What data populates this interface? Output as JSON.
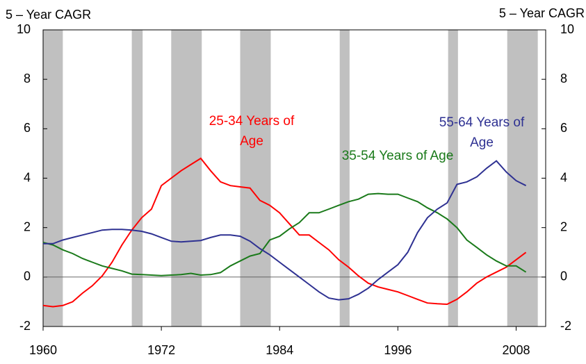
{
  "chart_data": {
    "type": "line",
    "y_axis_label": "5 – Year CAGR",
    "y2_axis_label": "5 – Year CAGR",
    "x": [
      1960,
      1961,
      1962,
      1963,
      1964,
      1965,
      1966,
      1967,
      1968,
      1969,
      1970,
      1971,
      1972,
      1973,
      1974,
      1975,
      1976,
      1977,
      1978,
      1979,
      1980,
      1981,
      1982,
      1983,
      1984,
      1985,
      1986,
      1987,
      1988,
      1989,
      1990,
      1991,
      1992,
      1993,
      1994,
      1995,
      1996,
      1997,
      1998,
      1999,
      2000,
      2001,
      2002,
      2003,
      2004,
      2005,
      2006,
      2007,
      2008,
      2009
    ],
    "series": [
      {
        "name": "25-34 Years of Age",
        "color": "#ff0000",
        "values": [
          -1.15,
          -1.2,
          -1.15,
          -1.0,
          -0.65,
          -0.35,
          0.05,
          0.6,
          1.3,
          1.9,
          2.4,
          2.75,
          3.7,
          4.0,
          4.3,
          4.55,
          4.8,
          4.3,
          3.85,
          3.7,
          3.65,
          3.6,
          3.1,
          2.9,
          2.6,
          2.15,
          1.7,
          1.7,
          1.4,
          1.1,
          0.7,
          0.4,
          0.05,
          -0.25,
          -0.4,
          -0.5,
          -0.6,
          -0.75,
          -0.9,
          -1.05,
          -1.08,
          -1.1,
          -0.9,
          -0.6,
          -0.25,
          0.0,
          0.2,
          0.4,
          0.7,
          1.0
        ]
      },
      {
        "name": "35-54 Years of Age",
        "color": "#1a7a1a",
        "values": [
          1.4,
          1.3,
          1.1,
          0.95,
          0.75,
          0.6,
          0.45,
          0.35,
          0.25,
          0.12,
          0.1,
          0.08,
          0.06,
          0.08,
          0.1,
          0.15,
          0.08,
          0.1,
          0.18,
          0.45,
          0.65,
          0.85,
          0.95,
          1.5,
          1.65,
          1.95,
          2.2,
          2.6,
          2.6,
          2.75,
          2.9,
          3.05,
          3.15,
          3.35,
          3.38,
          3.35,
          3.35,
          3.2,
          3.05,
          2.8,
          2.6,
          2.35,
          2.0,
          1.5,
          1.2,
          0.9,
          0.65,
          0.45,
          0.45,
          0.2
        ]
      },
      {
        "name": "55-64 Years of Age",
        "color": "#2e3192",
        "values": [
          1.35,
          1.35,
          1.5,
          1.6,
          1.7,
          1.8,
          1.9,
          1.93,
          1.93,
          1.9,
          1.85,
          1.75,
          1.6,
          1.45,
          1.42,
          1.45,
          1.48,
          1.6,
          1.7,
          1.7,
          1.65,
          1.45,
          1.15,
          0.9,
          0.6,
          0.3,
          0.0,
          -0.3,
          -0.6,
          -0.85,
          -0.92,
          -0.88,
          -0.7,
          -0.45,
          -0.1,
          0.2,
          0.5,
          1.0,
          1.8,
          2.4,
          2.75,
          3.0,
          3.75,
          3.85,
          4.05,
          4.4,
          4.7,
          4.25,
          3.9,
          3.7
        ]
      }
    ],
    "shaded_periods": [
      [
        1960,
        1962
      ],
      [
        1969,
        1970.1
      ],
      [
        1973,
        1976.1
      ],
      [
        1980,
        1983.1
      ],
      [
        1990.1,
        1991.1
      ],
      [
        2001.1,
        2002.1
      ],
      [
        2007.1,
        2010.2
      ]
    ],
    "shade_color": "#c0c0c0",
    "xlim": [
      1960,
      2011
    ],
    "xticks": [
      1960,
      1972,
      1984,
      1996,
      2008
    ],
    "ylim": [
      -2,
      10
    ],
    "yticks": [
      -2,
      0,
      2,
      4,
      6,
      8,
      10
    ],
    "y2lim": [
      -2,
      10
    ],
    "y2ticks": [
      -2,
      0,
      2,
      4,
      6,
      8,
      10
    ]
  }
}
